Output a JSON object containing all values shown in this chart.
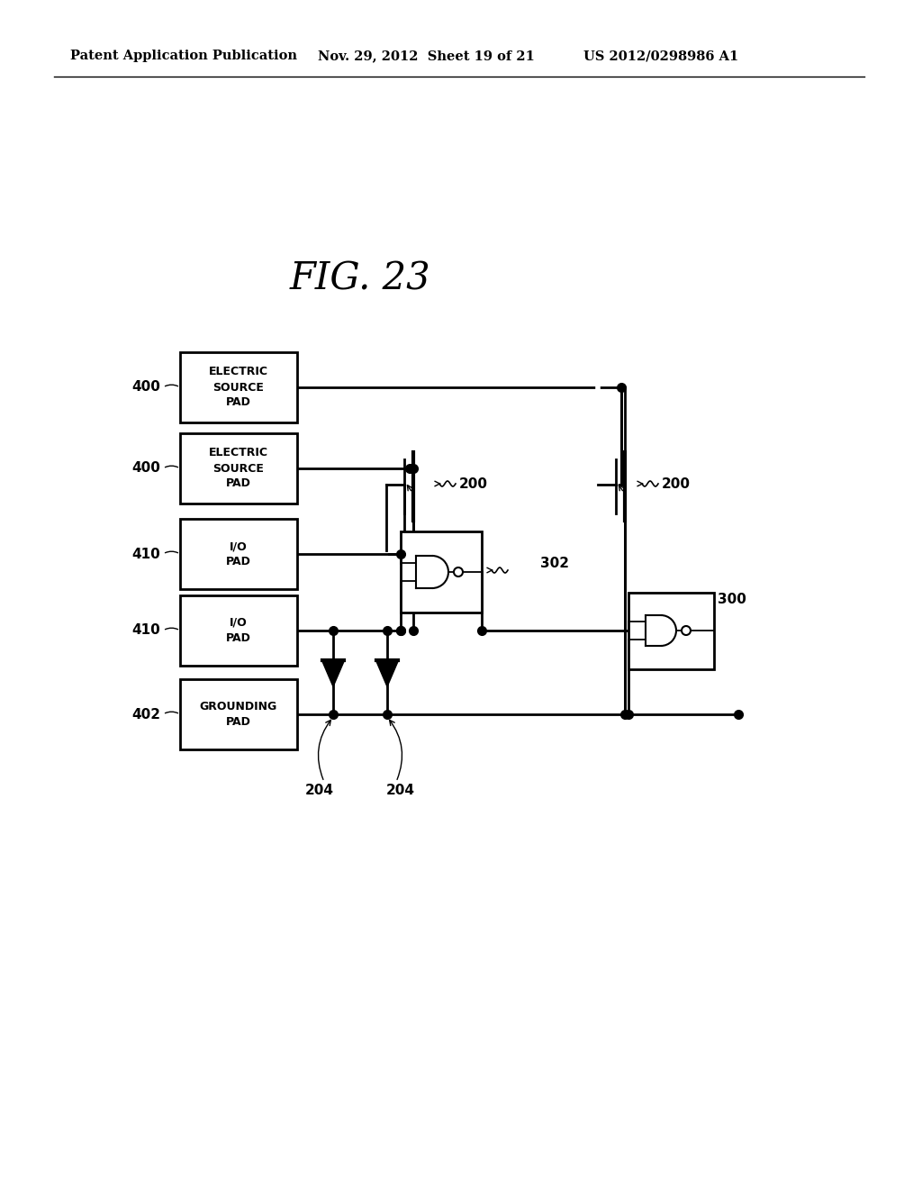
{
  "title": "FIG. 23",
  "header_left": "Patent Application Publication",
  "header_mid": "Nov. 29, 2012  Sheet 19 of 21",
  "header_right": "US 2012/0298986 A1",
  "bg_color": "#ffffff",
  "line_color": "#000000",
  "pad_labels": [
    "ELECTRIC\nSOURCE\nPAD",
    "ELECTRIC\nSOURCE\nPAD",
    "I/O\nPAD",
    "I/O\nPAD",
    "GROUNDING\nPAD"
  ],
  "side_labels": [
    "400",
    "400",
    "410",
    "410",
    "402"
  ],
  "component_labels": {
    "200a": "200",
    "200b": "200",
    "302": "302",
    "300": "300",
    "204a": "204",
    "204b": "204"
  }
}
